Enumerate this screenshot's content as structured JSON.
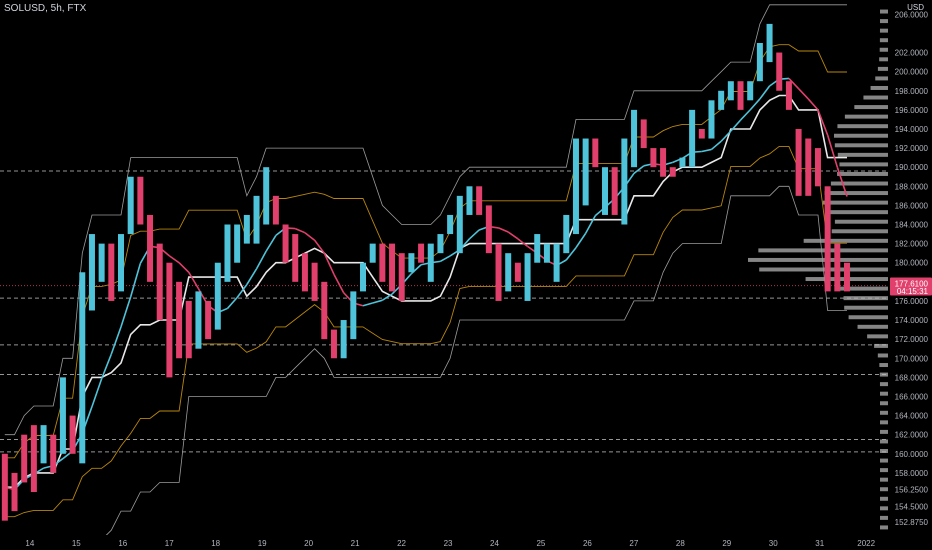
{
  "chart_data": {
    "type": "candlestick",
    "title": "SOLUSD, 5h, FTX",
    "currency": "USD",
    "ylim": [
      151.5,
      207.5
    ],
    "y_ticks": [
      "152.8750",
      "154.5000",
      "156.2500",
      "158.0000",
      "160.0000",
      "162.0000",
      "164.0000",
      "166.0000",
      "168.0000",
      "170.0000",
      "172.0000",
      "174.0000",
      "176.0000",
      "178.0000",
      "180.0000",
      "182.0000",
      "184.0000",
      "186.0000",
      "188.0000",
      "190.0000",
      "192.0000",
      "194.0000",
      "196.0000",
      "198.0000",
      "200.0000",
      "202.0000",
      "206.0000"
    ],
    "x_ticks": [
      {
        "label": "14",
        "i": 0
      },
      {
        "label": "15",
        "i": 4.8
      },
      {
        "label": "16",
        "i": 9.6
      },
      {
        "label": "17",
        "i": 14.4
      },
      {
        "label": "18",
        "i": 19.2
      },
      {
        "label": "19",
        "i": 24
      },
      {
        "label": "20",
        "i": 28.8
      },
      {
        "label": "21",
        "i": 33.6
      },
      {
        "label": "22",
        "i": 38.4
      },
      {
        "label": "23",
        "i": 43.2
      },
      {
        "label": "24",
        "i": 48
      },
      {
        "label": "25",
        "i": 52.8
      },
      {
        "label": "26",
        "i": 57.6
      },
      {
        "label": "27",
        "i": 62.4
      },
      {
        "label": "28",
        "i": 67.2
      },
      {
        "label": "29",
        "i": 72
      },
      {
        "label": "30",
        "i": 76.8
      },
      {
        "label": "31",
        "i": 81.6
      },
      {
        "label": "2022",
        "i": 86.4
      }
    ],
    "last_price": "177.6100",
    "countdown": "04:15:31",
    "colors": {
      "up": "#4fc3d9",
      "down": "#e0406b",
      "mid": "#e8e8e8",
      "band": "#b8860b",
      "hl": "#9c9c9c",
      "profile": "#8c8c8c",
      "last": "#e0406b"
    },
    "candles": [
      {
        "o": 160,
        "c": 153
      },
      {
        "o": 158,
        "c": 154
      },
      {
        "o": 162,
        "c": 157
      },
      {
        "o": 163,
        "c": 156
      },
      {
        "o": 159,
        "c": 163
      },
      {
        "o": 162,
        "c": 158
      },
      {
        "o": 160,
        "c": 168
      },
      {
        "o": 164,
        "c": 160
      },
      {
        "o": 159,
        "c": 179
      },
      {
        "o": 175,
        "c": 183
      },
      {
        "o": 178,
        "c": 182
      },
      {
        "o": 182,
        "c": 176
      },
      {
        "o": 177,
        "c": 183
      },
      {
        "o": 183,
        "c": 189
      },
      {
        "o": 189,
        "c": 184
      },
      {
        "o": 185,
        "c": 178
      },
      {
        "o": 182,
        "c": 174
      },
      {
        "o": 180,
        "c": 168
      },
      {
        "o": 178,
        "c": 170
      },
      {
        "o": 176,
        "c": 170
      },
      {
        "o": 171,
        "c": 177
      },
      {
        "o": 176,
        "c": 172
      },
      {
        "o": 173,
        "c": 180
      },
      {
        "o": 178,
        "c": 184
      },
      {
        "o": 180,
        "c": 184
      },
      {
        "o": 182,
        "c": 185
      },
      {
        "o": 182,
        "c": 187
      },
      {
        "o": 184,
        "c": 190
      },
      {
        "o": 187,
        "c": 184
      },
      {
        "o": 184,
        "c": 180
      },
      {
        "o": 183,
        "c": 178
      },
      {
        "o": 181,
        "c": 177
      },
      {
        "o": 180,
        "c": 176
      },
      {
        "o": 178,
        "c": 172
      },
      {
        "o": 173,
        "c": 170
      },
      {
        "o": 170,
        "c": 174
      },
      {
        "o": 172,
        "c": 177
      },
      {
        "o": 177,
        "c": 180
      },
      {
        "o": 180,
        "c": 182
      },
      {
        "o": 182,
        "c": 178
      },
      {
        "o": 182,
        "c": 177
      },
      {
        "o": 181,
        "c": 176
      },
      {
        "o": 179,
        "c": 181
      },
      {
        "o": 182,
        "c": 180
      },
      {
        "o": 178,
        "c": 182
      },
      {
        "o": 181,
        "c": 183
      },
      {
        "o": 183,
        "c": 185
      },
      {
        "o": 181,
        "c": 187
      },
      {
        "o": 185,
        "c": 188
      },
      {
        "o": 188,
        "c": 185
      },
      {
        "o": 186,
        "c": 181
      },
      {
        "o": 182,
        "c": 176
      },
      {
        "o": 177,
        "c": 181
      },
      {
        "o": 180,
        "c": 178
      },
      {
        "o": 176,
        "c": 181
      },
      {
        "o": 180,
        "c": 183
      },
      {
        "o": 180,
        "c": 182
      },
      {
        "o": 178,
        "c": 182
      },
      {
        "o": 181,
        "c": 185
      },
      {
        "o": 183,
        "c": 193
      },
      {
        "o": 186,
        "c": 193
      },
      {
        "o": 193,
        "c": 190
      },
      {
        "o": 185,
        "c": 190
      },
      {
        "o": 190,
        "c": 185
      },
      {
        "o": 184,
        "c": 193
      },
      {
        "o": 190,
        "c": 196
      },
      {
        "o": 195,
        "c": 192
      },
      {
        "o": 192,
        "c": 190
      },
      {
        "o": 192,
        "c": 189
      },
      {
        "o": 190,
        "c": 189
      },
      {
        "o": 190,
        "c": 191
      },
      {
        "o": 190,
        "c": 196
      },
      {
        "o": 194,
        "c": 193
      },
      {
        "o": 193,
        "c": 197
      },
      {
        "o": 196,
        "c": 198
      },
      {
        "o": 197,
        "c": 199
      },
      {
        "o": 199,
        "c": 196
      },
      {
        "o": 197,
        "c": 199
      },
      {
        "o": 199,
        "c": 203
      },
      {
        "o": 201,
        "c": 205
      },
      {
        "o": 202,
        "c": 198
      },
      {
        "o": 199,
        "c": 196
      },
      {
        "o": 194,
        "c": 187
      },
      {
        "o": 193,
        "c": 187
      },
      {
        "o": 192,
        "c": 188
      },
      {
        "o": 188,
        "c": 177
      },
      {
        "o": 182,
        "c": 177
      },
      {
        "o": 180,
        "c": 177
      }
    ],
    "levels": [
      {
        "price": 189.6,
        "color": "#bbbbbb",
        "style": "dashed"
      },
      {
        "price": 176.3,
        "color": "#bbbbbb",
        "style": "dashed"
      },
      {
        "price": 171.4,
        "color": "#bbbbbb",
        "style": "dashed"
      },
      {
        "price": 168.3,
        "color": "#bbbbbb",
        "style": "dashed"
      },
      {
        "price": 161.5,
        "color": "#bbbbbb",
        "style": "dashed"
      },
      {
        "price": 160.2,
        "color": "#bbbbbb",
        "style": "dashed"
      },
      {
        "price": 177.6,
        "color": "#e0406b",
        "style": "dotted"
      }
    ]
  }
}
